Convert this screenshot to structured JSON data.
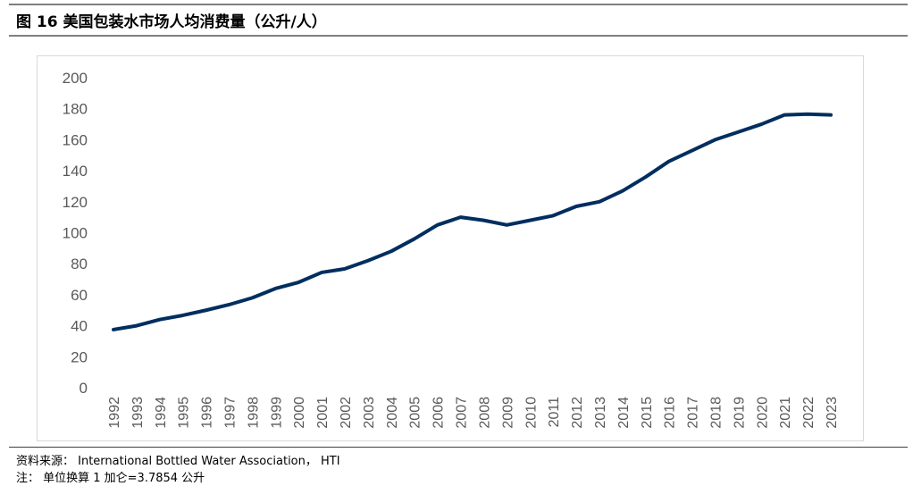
{
  "title": "图 16 美国包装水市场人均消费量（公升/人）",
  "source": "资料来源： International Bottled Water Association， HTI",
  "note": "注： 单位换算 1 加仑=3.7854 公升",
  "colors": {
    "line": "#002e5f",
    "axis_text": "#595959"
  },
  "chart_data": {
    "type": "line",
    "title": "美国包装水市场人均消费量（公升/人）",
    "xlabel": "",
    "ylabel": "",
    "ylim": [
      0,
      200
    ],
    "yticks": [
      0,
      20,
      40,
      60,
      80,
      100,
      120,
      140,
      160,
      180,
      200
    ],
    "grid": false,
    "categories": [
      "1992",
      "1993",
      "1994",
      "1995",
      "1996",
      "1997",
      "1998",
      "1999",
      "2000",
      "2001",
      "2002",
      "2003",
      "2004",
      "2005",
      "2006",
      "2007",
      "2008",
      "2009",
      "2010",
      "2011",
      "2012",
      "2013",
      "2014",
      "2015",
      "2016",
      "2017",
      "2018",
      "2019",
      "2020",
      "2021",
      "2022",
      "2023"
    ],
    "series": [
      {
        "name": "人均消费量",
        "values": [
          37.5,
          40,
          44,
          46.7,
          50,
          53.6,
          58,
          64,
          68,
          74.4,
          76.7,
          82,
          88,
          96,
          105,
          110,
          108,
          105,
          108,
          111,
          117,
          120,
          127,
          136,
          146,
          153,
          160,
          165,
          170,
          176,
          176.5,
          176
        ]
      }
    ]
  }
}
